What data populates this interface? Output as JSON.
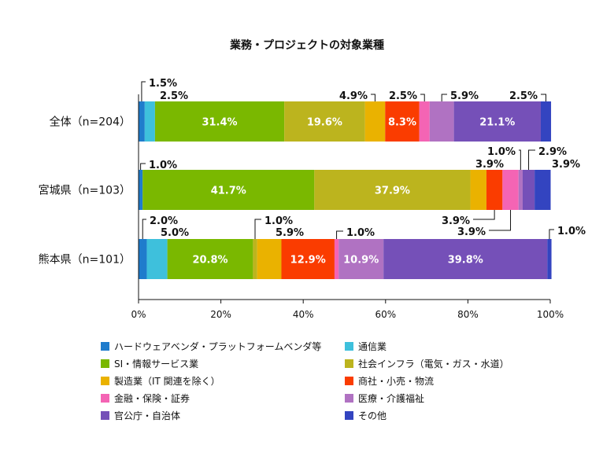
{
  "chart_data": {
    "type": "bar",
    "orientation": "horizontal",
    "stacked": true,
    "title": "業務・プロジェクトの対象業種",
    "categories": [
      "全体（n=204）",
      "宮城県（n=103）",
      "熊本県（n=101）"
    ],
    "xlim": [
      0,
      100
    ],
    "x_ticks": [
      "0%",
      "20%",
      "40%",
      "60%",
      "80%",
      "100%"
    ],
    "grid": false,
    "legend_position": "bottom",
    "series": [
      {
        "name": "ハードウェアベンダ・プラットフォームベンダ等",
        "color": "#1f7ccc",
        "values": [
          1.5,
          1.0,
          2.0
        ]
      },
      {
        "name": "通信業",
        "color": "#3ec0dc",
        "values": [
          2.5,
          0.0,
          5.0
        ]
      },
      {
        "name": "SI・情報サービス業",
        "color": "#7ab800",
        "values": [
          31.4,
          41.7,
          20.8
        ]
      },
      {
        "name": "社会インフラ（電気・ガス・水道）",
        "color": "#bcb41e",
        "values": [
          19.6,
          37.9,
          1.0
        ]
      },
      {
        "name": "製造業（IT 関連を除く）",
        "color": "#eab200",
        "values": [
          4.9,
          3.9,
          5.9
        ]
      },
      {
        "name": "商社・小売・物流",
        "color": "#fa3c00",
        "values": [
          8.3,
          3.9,
          12.9
        ]
      },
      {
        "name": "金融・保険・証券",
        "color": "#f464b4",
        "values": [
          2.5,
          3.9,
          1.0
        ]
      },
      {
        "name": "医療・介護福祉",
        "color": "#b072c2",
        "values": [
          5.9,
          1.0,
          10.9
        ]
      },
      {
        "name": "官公庁・自治体",
        "color": "#7550b8",
        "values": [
          21.1,
          2.9,
          39.8
        ]
      },
      {
        "name": "その他",
        "color": "#3344c0",
        "values": [
          2.5,
          3.9,
          1.0
        ]
      }
    ],
    "data_labels": [
      [
        "1.5%",
        "2.5%",
        "31.4%",
        "19.6%",
        "4.9%",
        "8.3%",
        "2.5%",
        "5.9%",
        "21.1%",
        "2.5%"
      ],
      [
        "1.0%",
        "",
        "41.7%",
        "37.9%",
        "3.9%",
        "3.9%",
        "3.9%",
        "1.0%",
        "2.9%",
        "3.9%"
      ],
      [
        "2.0%",
        "5.0%",
        "20.8%",
        "1.0%",
        "5.9%",
        "12.9%",
        "1.0%",
        "10.9%",
        "39.8%",
        "1.0%"
      ]
    ]
  }
}
